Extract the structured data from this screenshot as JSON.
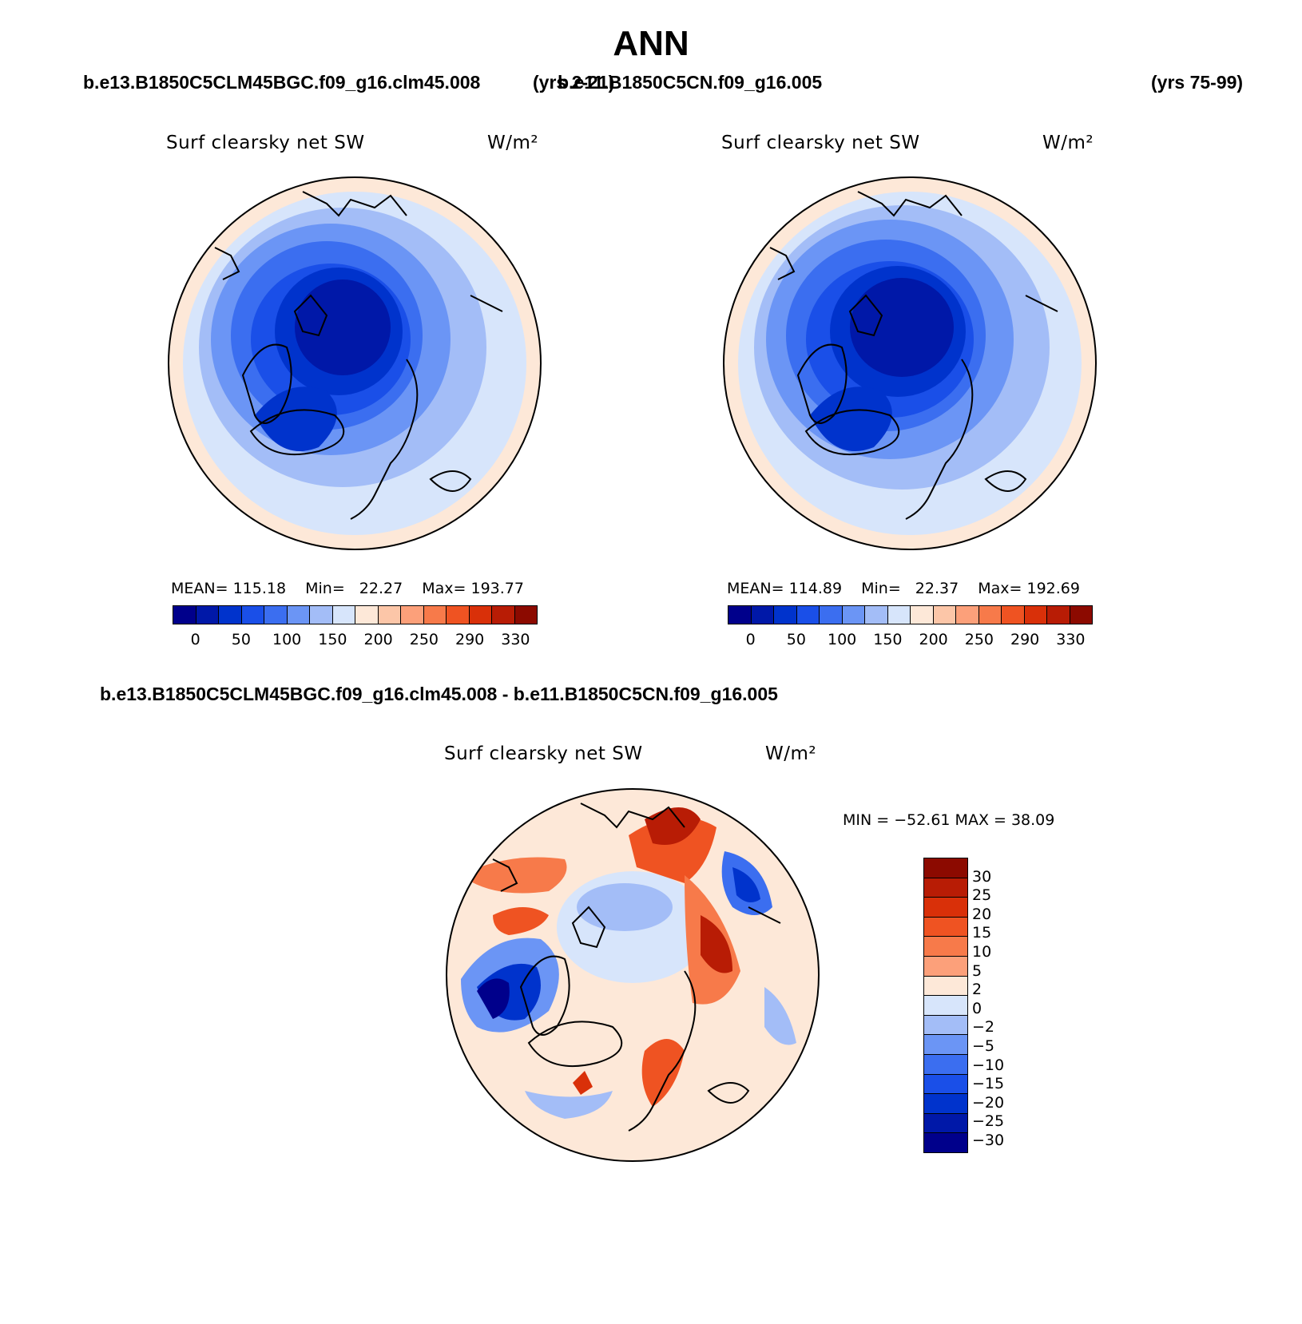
{
  "title": "ANN",
  "panels": {
    "left": {
      "case": "b.e13.B1850C5CLM45BGC.f09_g16.clm45.008",
      "years": "(yrs 2-21)",
      "variable": "Surf clearsky net SW",
      "units": "W/m²",
      "mean_label": "MEAN=",
      "mean": "115.18",
      "min_label": "Min=",
      "min": "22.27",
      "max_label": "Max=",
      "max": "193.77"
    },
    "right": {
      "case": "b.e11.B1850C5CN.f09_g16.005",
      "years": "(yrs 75-99)",
      "variable": "Surf clearsky net SW",
      "units": "W/m²",
      "mean_label": "MEAN=",
      "mean": "114.89",
      "min_label": "Min=",
      "min": "22.37",
      "max_label": "Max=",
      "max": "192.69"
    },
    "diff": {
      "title": "b.e13.B1850C5CLM45BGC.f09_g16.clm45.008 - b.e11.B1850C5CN.f09_g16.005",
      "variable": "Surf clearsky net SW",
      "units": "W/m²",
      "minmax": "MIN = −52.61  MAX =   38.09"
    }
  },
  "colorbar_main": {
    "colors": [
      "#00008b",
      "#0018a8",
      "#0033cc",
      "#1a4fe8",
      "#3b6ef0",
      "#6b95f5",
      "#a3bdf7",
      "#d7e5fb",
      "#fde8d8",
      "#fcc6a8",
      "#fca07a",
      "#f77a4a",
      "#ef5322",
      "#d93009",
      "#b81c05",
      "#8c0a00"
    ],
    "labels": [
      "0",
      "50",
      "100",
      "150",
      "200",
      "250",
      "290",
      "330"
    ]
  },
  "colorbar_diff": {
    "colors": [
      "#8c0a00",
      "#b81c05",
      "#d93009",
      "#ef5322",
      "#f77a4a",
      "#fca07a",
      "#fde8d8",
      "#d7e5fb",
      "#a3bdf7",
      "#6b95f5",
      "#3b6ef0",
      "#1a4fe8",
      "#0033cc",
      "#0018a8",
      "#00008b"
    ],
    "labels": [
      "30",
      "25",
      "20",
      "15",
      "10",
      "5",
      "2",
      "0",
      "−2",
      "−5",
      "−10",
      "−15",
      "−20",
      "−25",
      "−30"
    ]
  }
}
